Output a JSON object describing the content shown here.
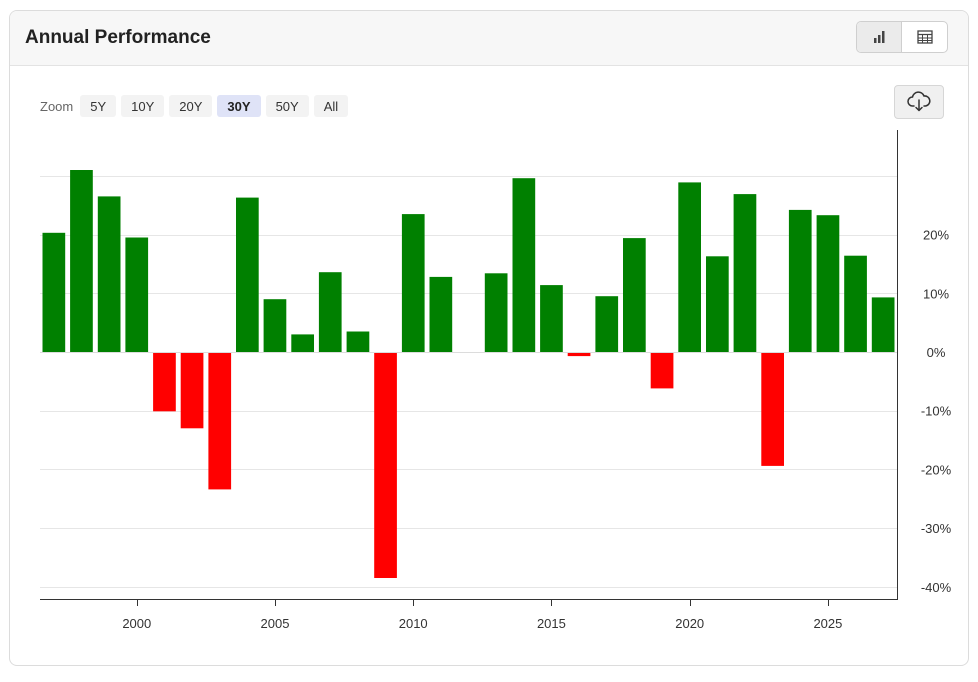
{
  "header": {
    "title": "Annual Performance"
  },
  "view_toggle": [
    {
      "icon": "bar-chart-icon",
      "active": true
    },
    {
      "icon": "table-icon",
      "active": false
    }
  ],
  "zoom": {
    "label": "Zoom",
    "options": [
      "5Y",
      "10Y",
      "20Y",
      "30Y",
      "50Y",
      "All"
    ],
    "active": "30Y"
  },
  "download": {
    "icon": "cloud-download-icon"
  },
  "colors": {
    "positive": "#008000",
    "negative": "#ff0000",
    "active_zoom": "#dfe3f7"
  },
  "chart_data": {
    "type": "bar",
    "title": "",
    "xlabel": "",
    "ylabel": "",
    "x": [
      1997,
      1998,
      1999,
      2000,
      2001,
      2002,
      2003,
      2004,
      2005,
      2006,
      2007,
      2008,
      2009,
      2010,
      2011,
      2012,
      2013,
      2014,
      2015,
      2016,
      2017,
      2018,
      2019,
      2020,
      2021,
      2022,
      2023,
      2024,
      2025,
      2026,
      2027
    ],
    "values": [
      20.3,
      31.0,
      26.5,
      19.5,
      -10.1,
      -13.0,
      -23.4,
      26.3,
      9.0,
      3.0,
      13.6,
      3.5,
      -38.5,
      23.5,
      12.8,
      null,
      13.4,
      29.6,
      11.4,
      -0.7,
      9.5,
      19.4,
      -6.2,
      28.9,
      16.3,
      26.9,
      -19.4,
      24.2,
      23.3,
      16.4,
      9.3
    ],
    "xticks": [
      2000,
      2005,
      2010,
      2015,
      2020,
      2025
    ],
    "yticks": [
      -40,
      -30,
      -20,
      -10,
      0,
      10,
      20
    ],
    "ytick_labels": [
      "-40%",
      "-30%",
      "-20%",
      "-10%",
      "0%",
      "10%",
      "20%"
    ],
    "ylim": [
      -42,
      34
    ],
    "xlim": [
      1996.5,
      2027.5
    ],
    "y_axis_position": "right",
    "grid": true
  }
}
